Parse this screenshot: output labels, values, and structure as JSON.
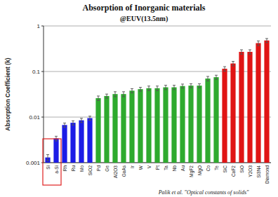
{
  "chart_data": {
    "type": "bar",
    "title": "Absorption of Inorganic materials",
    "subtitle": "@EUV(13.5nm)",
    "y_label": "Absorption Coefficient (k)",
    "annotation": "Palik et al. \"Optical constants of solids\"",
    "categories": [
      "Si",
      "a-Si",
      "Rh",
      "Ru",
      "Mo",
      "SiO2",
      "Pd",
      "Ge",
      "Al2O3",
      "GaAs",
      "Ir",
      "W",
      "V",
      "Pt",
      "Ta",
      "Nb",
      "Au",
      "MgF2",
      "MgO",
      "Co",
      "Te",
      "SiC",
      "CaF2",
      "SiO",
      "Y2O3",
      "Si3N4",
      "Diamond"
    ],
    "values": [
      0.0013,
      0.0034,
      0.0067,
      0.0075,
      0.0085,
      0.0095,
      0.026,
      0.029,
      0.032,
      0.032,
      0.038,
      0.041,
      0.043,
      0.043,
      0.045,
      0.045,
      0.048,
      0.049,
      0.049,
      0.07,
      0.075,
      0.115,
      0.15,
      0.27,
      0.27,
      0.42,
      0.48
    ],
    "errors": [
      0.0002,
      0.0004,
      0.0007,
      0.0008,
      0.0009,
      0.001,
      0.003,
      0.003,
      0.004,
      0.004,
      0.004,
      0.004,
      0.005,
      0.005,
      0.005,
      0.005,
      0.005,
      0.005,
      0.005,
      0.008,
      0.008,
      0.013,
      0.017,
      0.03,
      0.03,
      0.05,
      0.05
    ],
    "colors": [
      "#1c1ce6",
      "#1c1ce6",
      "#1c1ce6",
      "#1c1ce6",
      "#1c1ce6",
      "#1c1ce6",
      "#2eaa2e",
      "#2eaa2e",
      "#2eaa2e",
      "#2eaa2e",
      "#2eaa2e",
      "#2eaa2e",
      "#2eaa2e",
      "#2eaa2e",
      "#2eaa2e",
      "#2eaa2e",
      "#2eaa2e",
      "#2eaa2e",
      "#2eaa2e",
      "#2eaa2e",
      "#2eaa2e",
      "#e01414",
      "#e01414",
      "#e01414",
      "#e01414",
      "#e01414",
      "#e01414"
    ],
    "log": "y",
    "ylim": [
      0.001,
      1
    ],
    "yticks": [
      0.001,
      0.01,
      0.1,
      1
    ],
    "grid": true
  }
}
